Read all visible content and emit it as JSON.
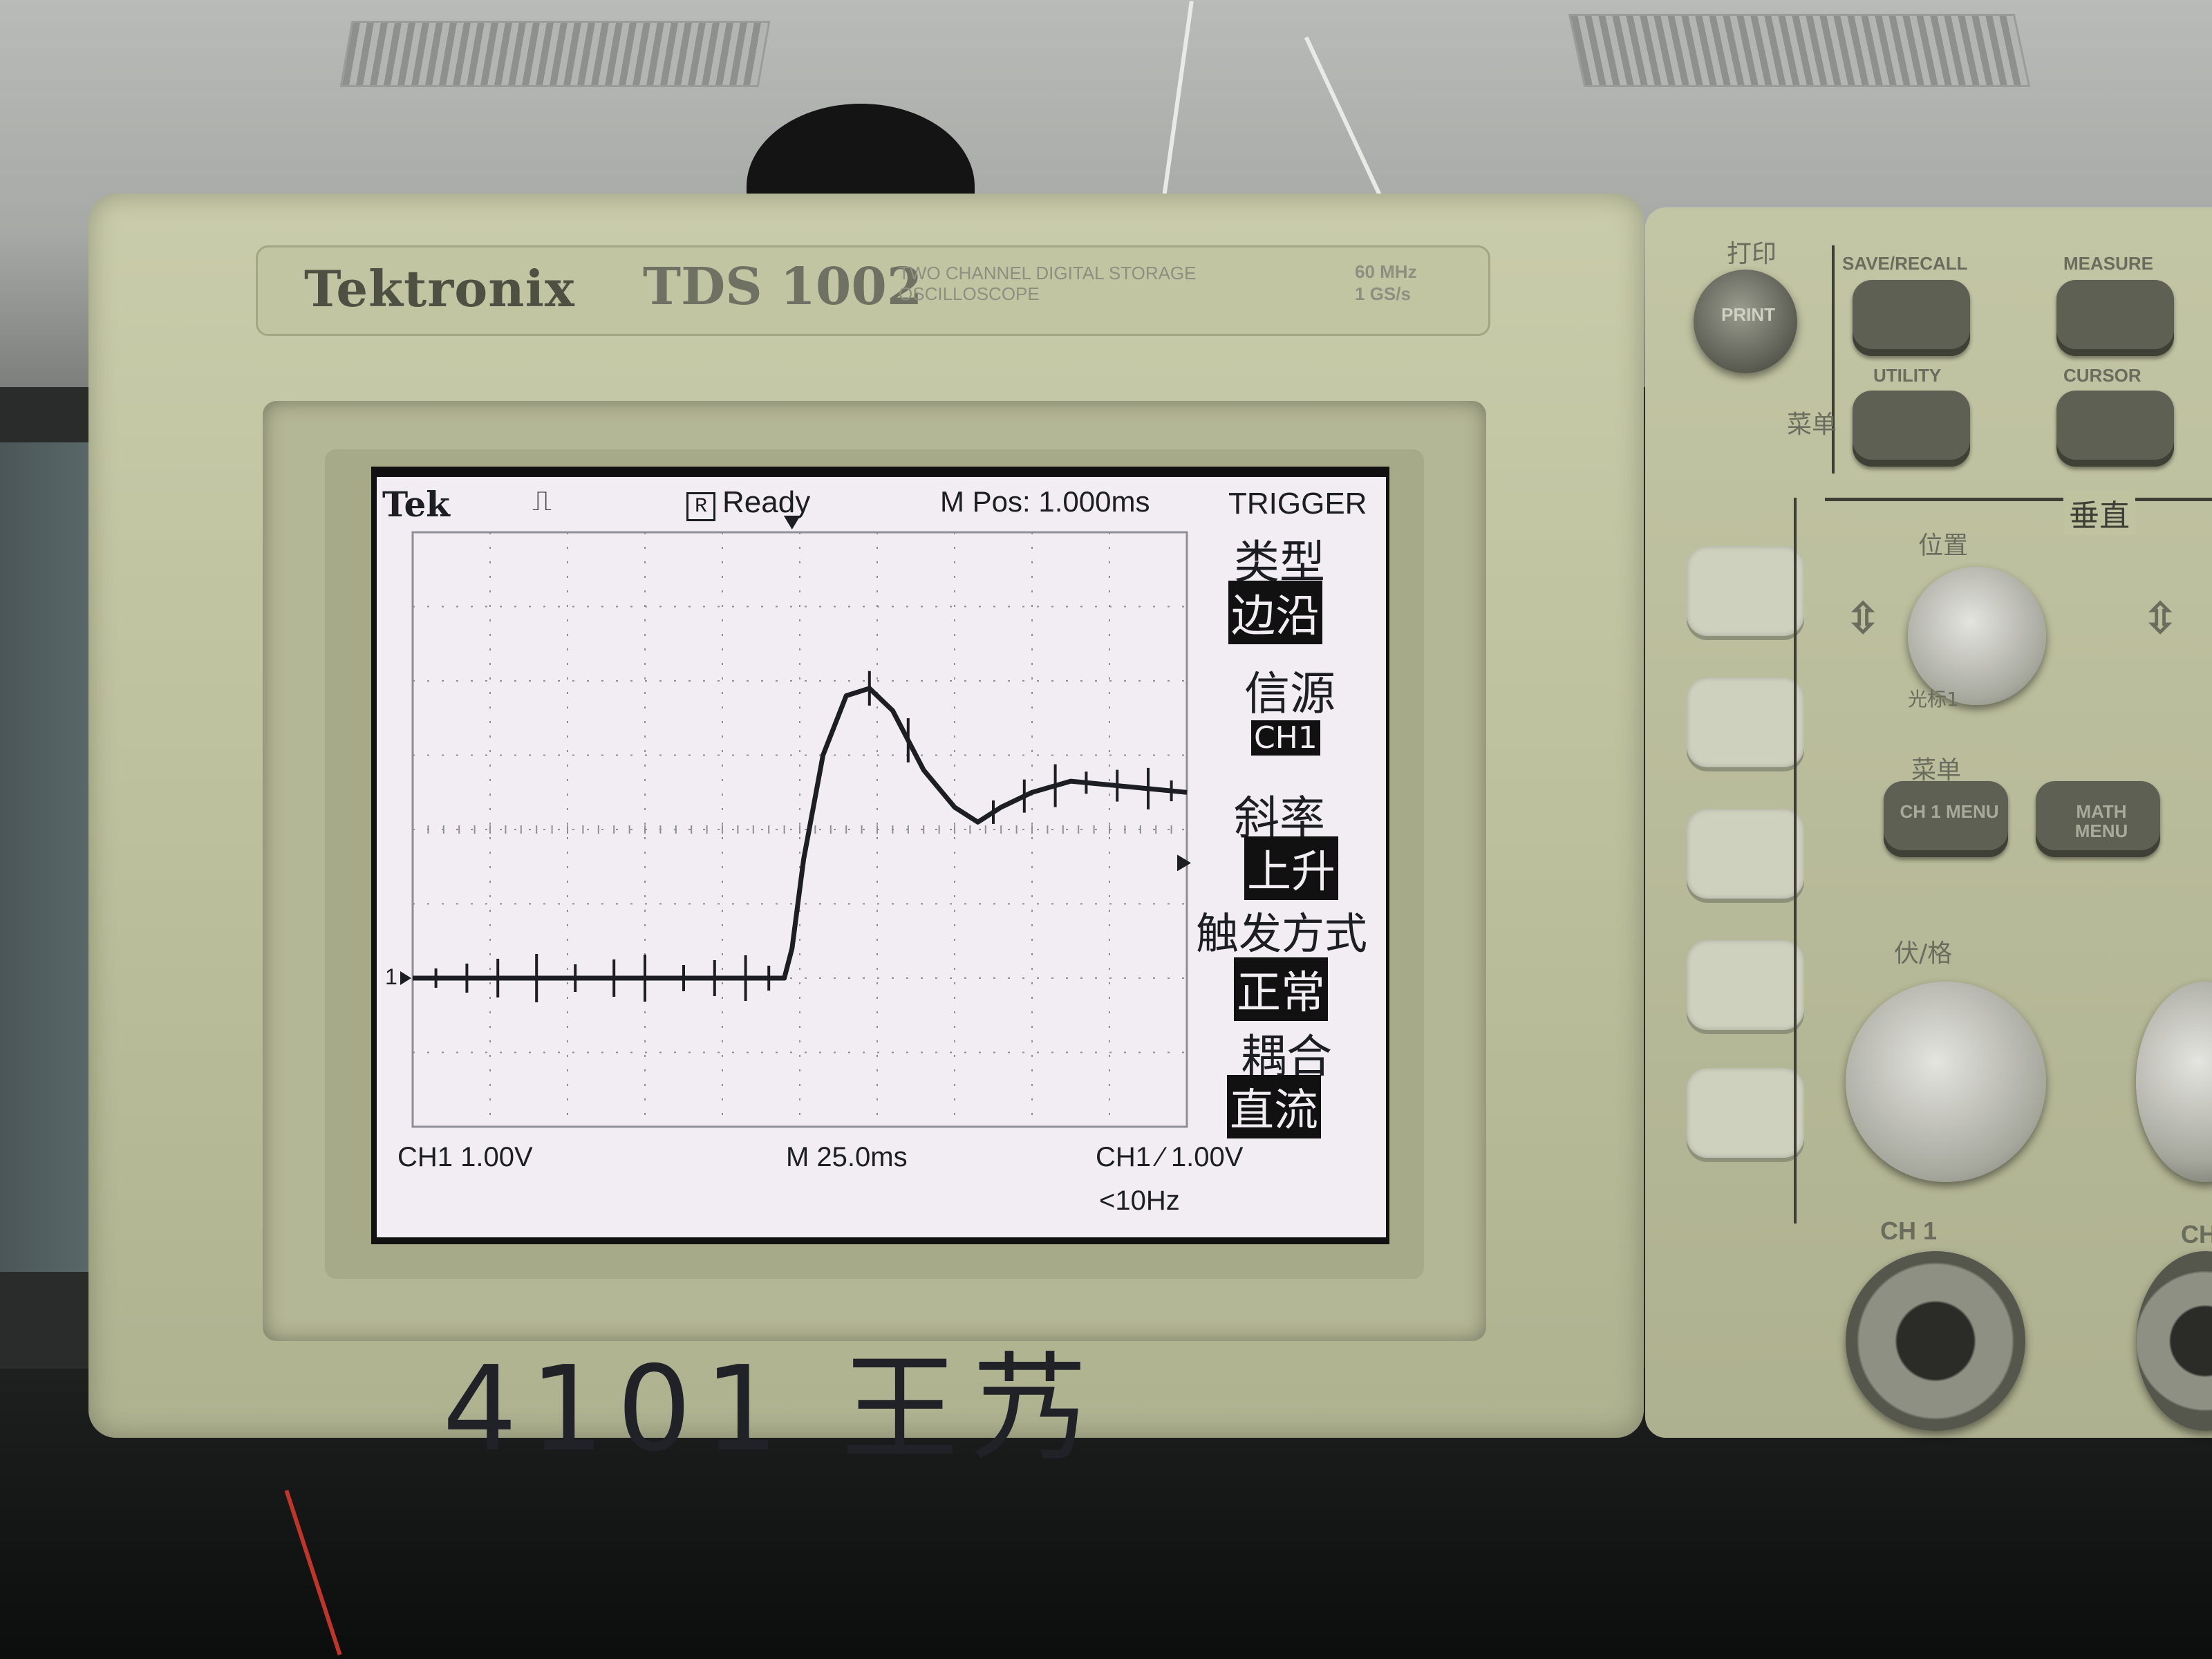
{
  "instrument": {
    "brand": "Tektronix",
    "model": "TDS 1002",
    "description": "TWO CHANNEL DIGITAL STORAGE OSCILLOSCOPE",
    "bandwidth": "60 MHz",
    "sample_rate": "1 GS/s"
  },
  "screen": {
    "logo": "Tek",
    "status": "Ready",
    "status_badge": "R",
    "time_position": "M Pos: 1.000ms",
    "ch1_scale": "CH1  1.00V",
    "timebase": "M 25.0ms",
    "trigger_readout": "CH1 ⁄ 1.00V",
    "frequency": "<10Hz",
    "ground_marker": "1",
    "colors": {
      "trace": "#1d1d24",
      "lcd_background": "#f1edf3",
      "grid": "#8f8e96"
    }
  },
  "trigger_menu": {
    "title": "TRIGGER",
    "items": [
      {
        "label": "类型",
        "value": "边沿"
      },
      {
        "label": "信源",
        "value": "CH1"
      },
      {
        "label": "斜率",
        "value": "上升"
      },
      {
        "label": "触发方式",
        "value": "正常"
      },
      {
        "label": "耦合",
        "value": "直流"
      }
    ]
  },
  "panel": {
    "print_label": "打印",
    "print_button": "PRINT",
    "save_recall": "SAVE/RECALL",
    "measure": "MEASURE",
    "utility": "UTILITY",
    "cursor": "CURSOR",
    "menu_label": "菜单",
    "vertical_label": "垂直",
    "position_label": "位置",
    "cursor1_label": "光标1",
    "ch1_menu_label": "菜单",
    "ch1_menu": "CH 1 MENU",
    "math_menu": "MATH MENU",
    "volts_div_label": "伏/格",
    "ch1_input": "CH 1",
    "ch2_partial": "CH"
  },
  "handwritten_note": "4101 王艿",
  "chart_data": {
    "type": "line",
    "title": "",
    "xlabel": "",
    "ylabel": "",
    "x_divisions": 10,
    "y_divisions": 8,
    "units_note": "x and y in screen divisions; CH1 1.00V/div, M 25.0ms/div",
    "series": [
      {
        "points": [
          [
            0.0,
            0.0
          ],
          [
            1.0,
            0.0
          ],
          [
            2.0,
            0.0
          ],
          [
            3.0,
            0.0
          ],
          [
            4.0,
            0.0
          ],
          [
            4.6,
            0.0
          ],
          [
            4.8,
            0.0
          ],
          [
            4.9,
            0.4
          ],
          [
            5.05,
            1.6
          ],
          [
            5.3,
            3.0
          ],
          [
            5.6,
            3.8
          ],
          [
            5.9,
            3.9
          ],
          [
            6.2,
            3.6
          ],
          [
            6.6,
            2.8
          ],
          [
            7.0,
            2.3
          ],
          [
            7.3,
            2.1
          ],
          [
            7.6,
            2.3
          ],
          [
            8.0,
            2.5
          ],
          [
            8.5,
            2.65
          ],
          [
            9.0,
            2.6
          ],
          [
            9.5,
            2.55
          ],
          [
            10.0,
            2.5
          ]
        ]
      }
    ]
  }
}
